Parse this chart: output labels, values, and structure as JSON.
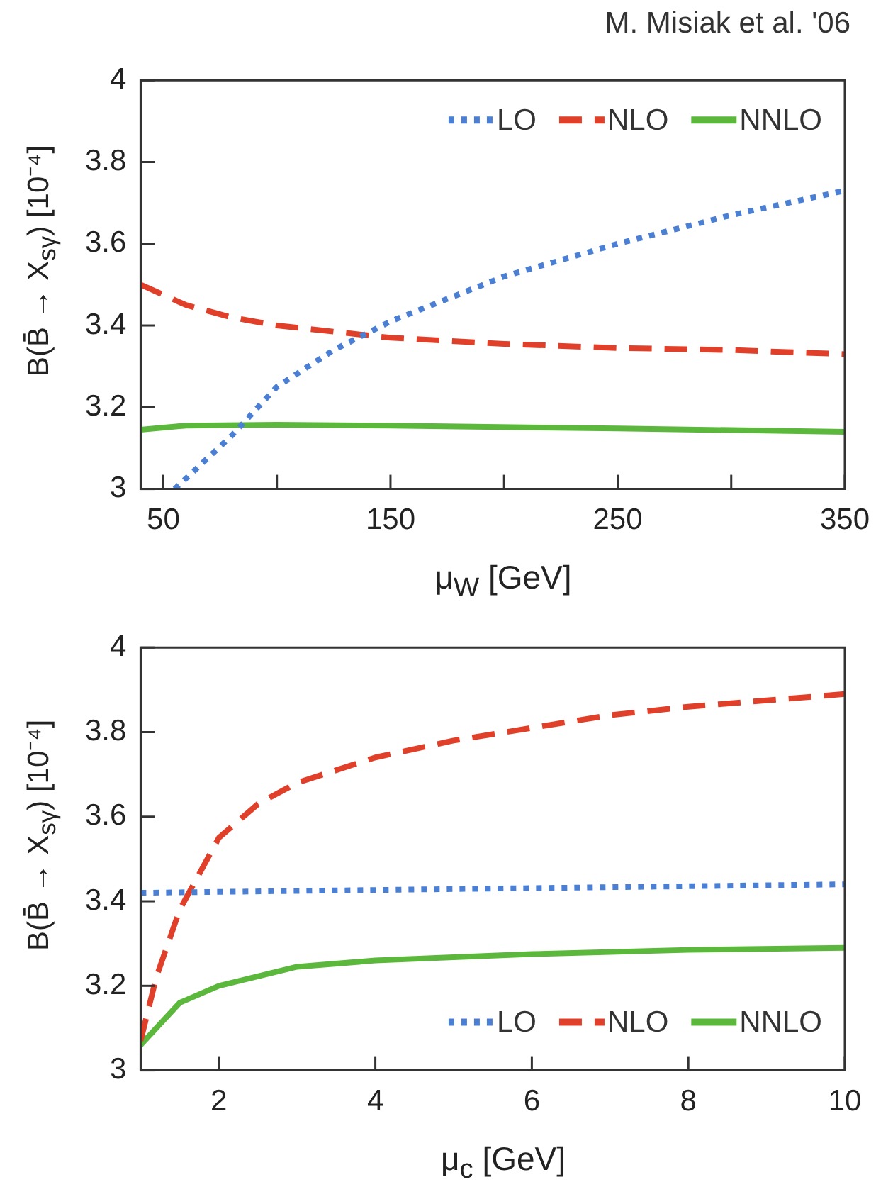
{
  "chart_data": [
    {
      "type": "line",
      "annotations": [
        "M. Misiak et al. '06"
      ],
      "xlabel": "μ$_{W}$ [GeV]",
      "ylabel": "B(B̄ → X$_{sγ}$) [10⁻⁴]",
      "xlim": [
        40,
        350
      ],
      "xticks": [
        50,
        {
          "value": 100,
          "label": null
        },
        150,
        {
          "value": 200,
          "label": null
        },
        250,
        {
          "value": 300,
          "label": null
        },
        350
      ],
      "ylim": [
        3,
        4
      ],
      "yticks": [
        3,
        3.2,
        3.4,
        3.6,
        3.8,
        4
      ],
      "legend": "top right",
      "marker": "none",
      "series": [
        {
          "name": "LO",
          "color": "#4a7fd4",
          "line_style": "dotted",
          "x": [
            55,
            80,
            100,
            125,
            150,
            200,
            250,
            300,
            350
          ],
          "values": [
            3.0,
            3.13,
            3.25,
            3.34,
            3.41,
            3.52,
            3.6,
            3.67,
            3.73
          ]
        },
        {
          "name": "NLO",
          "color": "#e0402a",
          "line_style": "dashed",
          "x": [
            40,
            60,
            80,
            100,
            150,
            200,
            250,
            300,
            350
          ],
          "values": [
            3.5,
            3.45,
            3.42,
            3.4,
            3.37,
            3.355,
            3.345,
            3.34,
            3.33
          ]
        },
        {
          "name": "NNLO",
          "color": "#5cb83c",
          "line_style": "solid",
          "x": [
            40,
            60,
            100,
            150,
            250,
            350
          ],
          "values": [
            3.145,
            3.155,
            3.157,
            3.155,
            3.148,
            3.14
          ]
        }
      ]
    },
    {
      "type": "line",
      "xlabel": "μ$_{c}$ [GeV]",
      "ylabel": "B(B̄ → X$_{sγ}$) [10⁻⁴]",
      "xlim": [
        1,
        10
      ],
      "xticks": [
        2,
        4,
        6,
        8,
        10
      ],
      "ylim": [
        3,
        4
      ],
      "yticks": [
        3,
        3.2,
        3.4,
        3.6,
        3.8,
        4
      ],
      "legend": "bottom right",
      "marker": "none",
      "series": [
        {
          "name": "LO",
          "color": "#4a7fd4",
          "line_style": "dotted",
          "x": [
            1,
            10
          ],
          "values": [
            3.42,
            3.44
          ]
        },
        {
          "name": "NLO",
          "color": "#e0402a",
          "line_style": "dashed",
          "x": [
            1,
            1.2,
            1.5,
            2,
            2.5,
            3,
            4,
            5,
            6,
            7,
            8,
            9,
            10
          ],
          "values": [
            3.07,
            3.22,
            3.38,
            3.55,
            3.63,
            3.68,
            3.74,
            3.78,
            3.81,
            3.84,
            3.86,
            3.875,
            3.89
          ]
        },
        {
          "name": "NNLO",
          "color": "#5cb83c",
          "line_style": "solid",
          "x": [
            1,
            1.5,
            2,
            3,
            4,
            6,
            8,
            10
          ],
          "values": [
            3.06,
            3.16,
            3.2,
            3.245,
            3.26,
            3.275,
            3.285,
            3.29
          ]
        }
      ]
    }
  ]
}
